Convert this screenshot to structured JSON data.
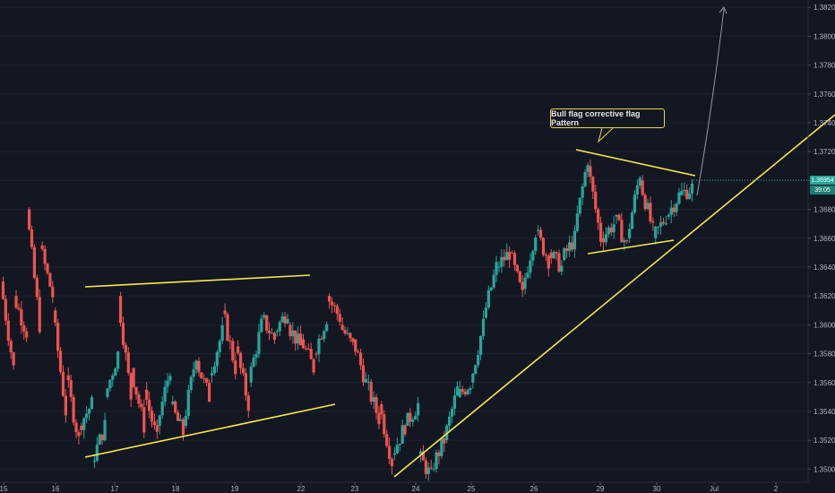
{
  "chart_data": {
    "type": "candlestick",
    "symbol_pair_hint": "",
    "y_axis": {
      "ticks": [
        "1.35000",
        "1.35200",
        "1.35400",
        "1.35600",
        "1.35800",
        "1.36000",
        "1.36200",
        "1.36400",
        "1.36600",
        "1.36800",
        "1.37000",
        "1.37200",
        "1.37400",
        "1.37600",
        "1.37800",
        "1.38000",
        "1.38200"
      ],
      "range": [
        1.3494,
        1.3822
      ]
    },
    "x_axis": {
      "ticks": [
        "15",
        "16",
        "17",
        "18",
        "19",
        "22",
        "23",
        "24",
        "25",
        "26",
        "29",
        "30",
        "Jul",
        "2"
      ]
    },
    "last_price": "1.36954",
    "countdown": "39:05",
    "annotation": "Bull flag corrective flag Pattern",
    "colors": {
      "background": "#131722",
      "up": "#26a69a",
      "down": "#ef5350",
      "trendline": "#f5e94a",
      "axis_text": "#b2b5be",
      "price_tag": "#26a69a"
    },
    "price_path": [
      [
        1.363,
        1.357
      ],
      [
        1.362,
        1.3595
      ],
      [
        1.368,
        1.36
      ],
      [
        1.3655,
        1.362
      ],
      [
        1.361,
        1.354
      ],
      [
        1.3565,
        1.352
      ],
      [
        1.353,
        1.3545
      ],
      [
        1.3505,
        1.353
      ],
      [
        1.355,
        1.358
      ],
      [
        1.362,
        1.355
      ],
      [
        1.357,
        1.353
      ],
      [
        1.3555,
        1.352
      ],
      [
        1.353,
        1.357
      ],
      [
        1.3545,
        1.3525
      ],
      [
        1.353,
        1.358
      ],
      [
        1.3575,
        1.355
      ],
      [
        1.3565,
        1.3595
      ],
      [
        1.361,
        1.357
      ],
      [
        1.3585,
        1.3545
      ],
      [
        1.356,
        1.36
      ],
      [
        1.3605,
        1.359
      ],
      [
        1.3595,
        1.361
      ],
      [
        1.36,
        1.3585
      ],
      [
        1.359,
        1.357
      ],
      [
        1.358,
        1.3605
      ],
      [
        1.362,
        1.3605
      ],
      [
        1.36,
        1.3585
      ],
      [
        1.359,
        1.356
      ],
      [
        1.356,
        1.3535
      ],
      [
        1.3545,
        1.3505
      ],
      [
        1.351,
        1.353
      ],
      [
        1.353,
        1.3545
      ],
      [
        1.351,
        1.3495
      ],
      [
        1.35,
        1.352
      ],
      [
        1.352,
        1.3555
      ],
      [
        1.355,
        1.356
      ],
      [
        1.356,
        1.36
      ],
      [
        1.3605,
        1.364
      ],
      [
        1.364,
        1.365
      ],
      [
        1.365,
        1.362
      ],
      [
        1.3625,
        1.3665
      ],
      [
        1.3665,
        1.3645
      ],
      [
        1.365,
        1.364
      ],
      [
        1.3645,
        1.366
      ],
      [
        1.3665,
        1.3715
      ],
      [
        1.371,
        1.366
      ],
      [
        1.366,
        1.367
      ],
      [
        1.3675,
        1.3655
      ],
      [
        1.366,
        1.3705
      ],
      [
        1.37,
        1.3665
      ],
      [
        1.366,
        1.3675
      ],
      [
        1.3675,
        1.369
      ],
      [
        1.369,
        1.3695
      ]
    ]
  }
}
